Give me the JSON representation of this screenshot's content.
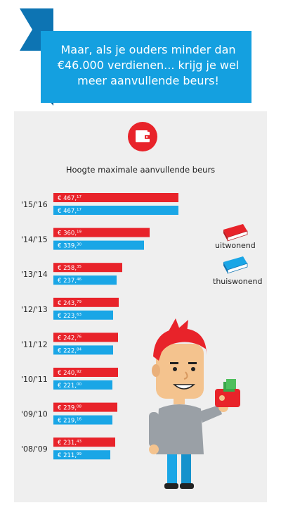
{
  "banner": {
    "line1": "Maar, als je ouders minder dan",
    "line2": "€46.000 verdienen... krijg je wel",
    "line3": "meer aanvullende beurs!"
  },
  "colors": {
    "banner_blue": "#14a0e0",
    "banner_dark": "#0d74b3",
    "uitwonend": "#e8232a",
    "thuiswonend": "#1aa6e6"
  },
  "icons": {
    "header": "wallet-icon",
    "legend_uitwonend": "book-icon",
    "legend_thuiswonend": "book-icon",
    "illustration": "boy-with-wallet"
  },
  "chart_data": {
    "type": "bar",
    "title": "Hoogte maximale aanvullende beurs",
    "categories": [
      "'15/'16",
      "'14/'15",
      "'13/'14",
      "'12/'13",
      "'11/'12",
      "'10/'11",
      "'09/'10",
      "'08/'09"
    ],
    "series": [
      {
        "name": "uitwonend",
        "values": [
          467.17,
          360.19,
          258.35,
          243.79,
          242.76,
          240.92,
          239.08,
          231.43
        ],
        "labels": [
          [
            "€ 467",
            "17"
          ],
          [
            "€ 360",
            "19"
          ],
          [
            "€ 258",
            "35"
          ],
          [
            "€ 243",
            "79"
          ],
          [
            "€ 242",
            "76"
          ],
          [
            "€ 240",
            "92"
          ],
          [
            "€ 239",
            "08"
          ],
          [
            "€ 231",
            "43"
          ]
        ]
      },
      {
        "name": "thuiswonend",
        "values": [
          467.17,
          339.3,
          237.46,
          223.63,
          222.84,
          221.0,
          219.16,
          211.99
        ],
        "labels": [
          [
            "€ 467",
            "17"
          ],
          [
            "€ 339",
            "30"
          ],
          [
            "€ 237",
            "46"
          ],
          [
            "€ 223",
            "63"
          ],
          [
            "€ 222",
            "84"
          ],
          [
            "€ 221",
            "00"
          ],
          [
            "€ 219",
            "16"
          ],
          [
            "€ 211",
            "99"
          ]
        ]
      }
    ],
    "legend_placement": "right"
  }
}
